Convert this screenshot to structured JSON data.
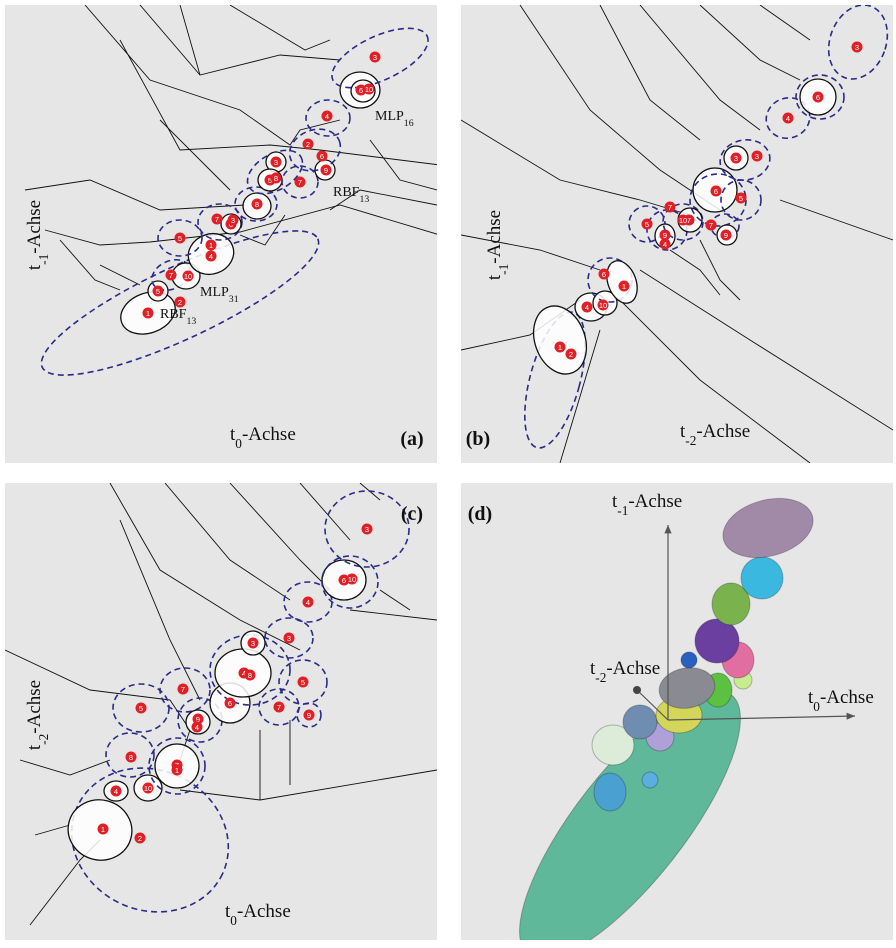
{
  "panels": [
    {
      "label": "(a)",
      "axes": [
        {
          "var": "t",
          "sub": "-1",
          "rest": "-Achse"
        },
        {
          "var": "t",
          "sub": "0",
          "rest": "-Achse"
        }
      ],
      "annotations": [
        {
          "text": "MLP",
          "sub": "16"
        },
        {
          "text": "RBF",
          "sub": "13"
        },
        {
          "text": "MLP",
          "sub": "31"
        },
        {
          "text": "RBF",
          "sub": "13"
        }
      ],
      "points": [
        "3",
        "6",
        "10",
        "4",
        "2",
        "6",
        "9",
        "7",
        "3",
        "5",
        "8",
        "8",
        "5",
        "7",
        "6",
        "3",
        "1",
        "4",
        "7",
        "10",
        "5",
        "2",
        "1"
      ]
    },
    {
      "label": "(b)",
      "axes": [
        {
          "var": "t",
          "sub": "-1",
          "rest": "-Achse"
        },
        {
          "var": "t",
          "sub": "-2",
          "rest": "-Achse"
        }
      ],
      "points": [
        "3",
        "6",
        "4",
        "3",
        "3",
        "6",
        "5",
        "7",
        "5",
        "7",
        "10",
        "9",
        "4",
        "8",
        "7",
        "9",
        "6",
        "1",
        "4",
        "10",
        "1",
        "2"
      ]
    },
    {
      "label": "(c)",
      "axes": [
        {
          "var": "t",
          "sub": "-2",
          "rest": "-Achse"
        },
        {
          "var": "t",
          "sub": "0",
          "rest": "-Achse"
        }
      ],
      "points": [
        "3",
        "6",
        "10",
        "4",
        "3",
        "3",
        "4",
        "8",
        "5",
        "7",
        "6",
        "5",
        "7",
        "9",
        "9",
        "4",
        "8",
        "7",
        "1",
        "4",
        "10",
        "1",
        "2"
      ]
    },
    {
      "label": "(d)",
      "axes": [
        {
          "var": "t",
          "sub": "-1",
          "rest": "-Achse"
        },
        {
          "var": "t",
          "sub": "0",
          "rest": "-Achse"
        },
        {
          "var": "t",
          "sub": "-2",
          "rest": "-Achse"
        }
      ]
    }
  ]
}
